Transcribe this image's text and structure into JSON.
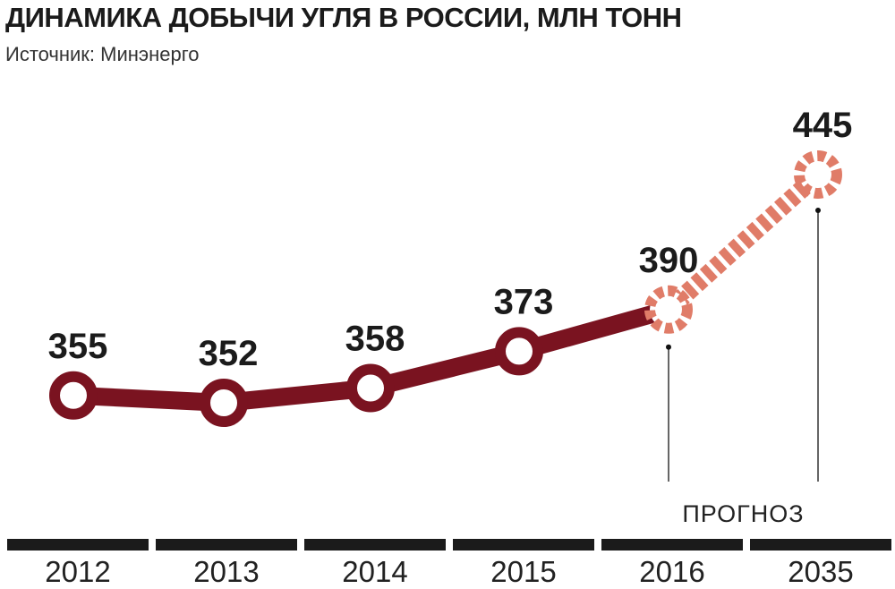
{
  "header": {
    "title": "ДИНАМИКА ДОБЫЧИ УГЛЯ В РОССИИ, МЛН ТОНН",
    "source": "Источник: Минэнерго"
  },
  "colors": {
    "actual": "#7a1320",
    "forecast": "#e07c68",
    "axis": "#1b1b1b"
  },
  "chart_data": {
    "type": "line",
    "title": "ДИНАМИКА ДОБЫЧИ УГЛЯ В РОССИИ, МЛН ТОНН",
    "categories": [
      "2012",
      "2013",
      "2014",
      "2015",
      "2016",
      "2035"
    ],
    "values": [
      355,
      352,
      358,
      373,
      390,
      445
    ],
    "value_labels": [
      "355",
      "352",
      "358",
      "373",
      "390",
      "445"
    ],
    "forecast_from_index": 4,
    "forecast_label": "ПРОГНОЗ",
    "ylim": [
      340,
      450
    ],
    "grid": false,
    "legend": "none"
  }
}
